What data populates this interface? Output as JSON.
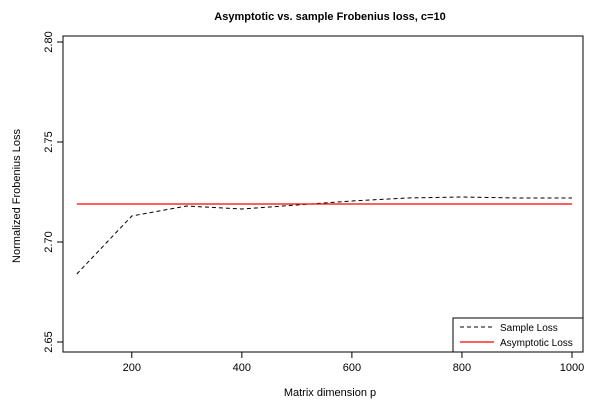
{
  "chart_data": {
    "type": "line",
    "title": "Asymptotic vs. sample Frobenius loss, c=10",
    "xlabel": "Matrix dimension p",
    "ylabel": "Normalized Frobenius Loss",
    "xlim": [
      75,
      1020
    ],
    "ylim": [
      2.645,
      2.803
    ],
    "xticks": [
      200,
      400,
      600,
      800,
      1000
    ],
    "yticks": [
      2.65,
      2.7,
      2.75,
      2.8
    ],
    "xtick_labels": [
      "200",
      "400",
      "600",
      "800",
      "1000"
    ],
    "ytick_labels": [
      "2.65",
      "2.70",
      "2.75",
      "2.80"
    ],
    "grid": false,
    "legend_position": "bottom-right",
    "series": [
      {
        "name": "Sample Loss",
        "color": "#000000",
        "style": "dashed",
        "x": [
          100,
          200,
          300,
          400,
          500,
          600,
          700,
          800,
          900,
          1000
        ],
        "values": [
          2.684,
          2.713,
          2.718,
          2.7165,
          2.7185,
          2.7205,
          2.722,
          2.7225,
          2.722,
          2.722
        ]
      },
      {
        "name": "Asymptotic Loss",
        "color": "#ff0000",
        "style": "solid",
        "x": [
          100,
          1000
        ],
        "values": [
          2.719,
          2.719
        ]
      }
    ]
  }
}
